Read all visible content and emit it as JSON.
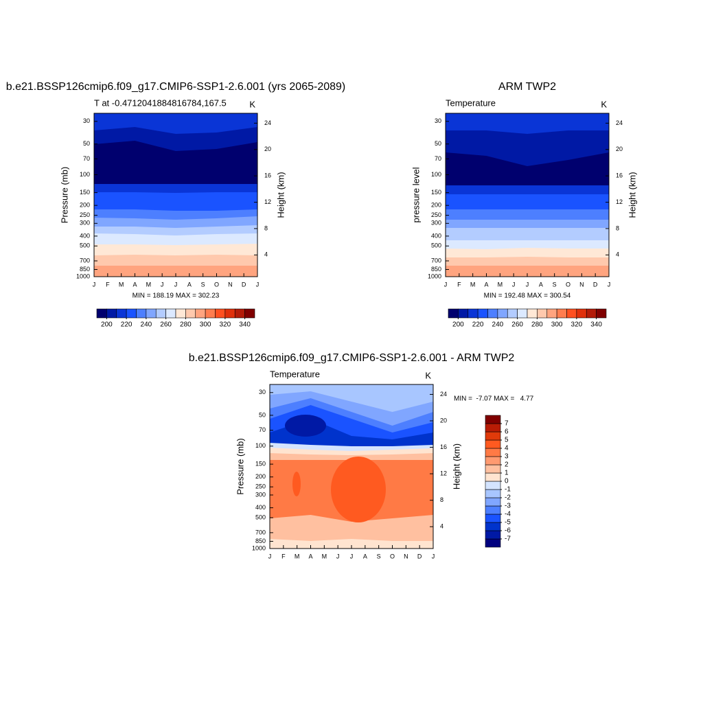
{
  "chart_data": [
    {
      "type": "contour",
      "title": "b.e21.BSSP126cmip6.f09_g17.CMIP6-SSP1-2.6.001 (yrs 2065-2089)",
      "subtitle": "T at -0.4712041884816784,167.5",
      "units": "K",
      "categories": [
        "J",
        "F",
        "M",
        "A",
        "M",
        "J",
        "J",
        "A",
        "S",
        "O",
        "N",
        "D",
        "J"
      ],
      "ylabel": "Pressure (mb)",
      "y2label": "Height (km)",
      "log_y": true,
      "ylim": [
        1000,
        25
      ],
      "yticks": [
        30,
        50,
        70,
        100,
        150,
        200,
        250,
        300,
        400,
        500,
        700,
        850,
        1000
      ],
      "y2lim": [
        0.7,
        25.5
      ],
      "y2ticks": [
        4,
        8,
        12,
        16,
        20,
        24
      ],
      "stats": "MIN = 188.19 MAX = 302.23",
      "colorbar": {
        "orientation": "horizontal",
        "clim": [
          190,
          350
        ],
        "ticks": [
          200,
          220,
          240,
          260,
          280,
          300,
          320,
          340
        ],
        "colors": [
          "#00006e",
          "#0019a5",
          "#0a35d6",
          "#1a53ff",
          "#4d7fff",
          "#80a6ff",
          "#b3ccff",
          "#dce9ff",
          "#ffe8d6",
          "#ffc9ad",
          "#ffa47f",
          "#ff7d4f",
          "#ff5020",
          "#e0300b",
          "#b31b08",
          "#800000"
        ]
      }
    },
    {
      "type": "contour",
      "title": "ARM TWP2",
      "subtitle": "Temperature",
      "units": "K",
      "categories": [
        "J",
        "F",
        "M",
        "A",
        "M",
        "J",
        "J",
        "A",
        "S",
        "O",
        "N",
        "D",
        "J"
      ],
      "ylabel": "pressure level",
      "y2label": "Height (km)",
      "log_y": true,
      "ylim": [
        1000,
        25
      ],
      "yticks": [
        30,
        50,
        70,
        100,
        150,
        200,
        250,
        300,
        400,
        500,
        700,
        850,
        1000
      ],
      "y2lim": [
        0.7,
        25.5
      ],
      "y2ticks": [
        4,
        8,
        12,
        16,
        20,
        24
      ],
      "stats": "MIN = 192.48 MAX = 300.54",
      "colorbar": {
        "orientation": "horizontal",
        "clim": [
          190,
          350
        ],
        "ticks": [
          200,
          220,
          240,
          260,
          280,
          300,
          320,
          340
        ],
        "colors": [
          "#00006e",
          "#0019a5",
          "#0a35d6",
          "#1a53ff",
          "#4d7fff",
          "#80a6ff",
          "#b3ccff",
          "#dce9ff",
          "#ffe8d6",
          "#ffc9ad",
          "#ffa47f",
          "#ff7d4f",
          "#ff5020",
          "#e0300b",
          "#b31b08",
          "#800000"
        ]
      }
    },
    {
      "type": "contour",
      "title": "b.e21.BSSP126cmip6.f09_g17.CMIP6-SSP1-2.6.001 - ARM TWP2",
      "subtitle": "Temperature",
      "units": "K",
      "categories": [
        "J",
        "F",
        "M",
        "A",
        "M",
        "J",
        "J",
        "A",
        "S",
        "O",
        "N",
        "D",
        "J"
      ],
      "ylabel": "Pressure (mb)",
      "y2label": "Height (km)",
      "log_y": true,
      "ylim": [
        1000,
        25
      ],
      "yticks": [
        30,
        50,
        70,
        100,
        150,
        200,
        250,
        300,
        400,
        500,
        700,
        850,
        1000
      ],
      "y2lim": [
        0.7,
        25.5
      ],
      "y2ticks": [
        4,
        8,
        12,
        16,
        20,
        24
      ],
      "stats": "MIN =  -7.07 MAX =   4.77",
      "colorbar": {
        "orientation": "vertical",
        "clim": [
          -8,
          8
        ],
        "ticks": [
          -7,
          -6,
          -5,
          -4,
          -3,
          -2,
          -1,
          0,
          1,
          2,
          3,
          4,
          5,
          6,
          7
        ],
        "colors": [
          "#00007f",
          "#0019a5",
          "#0033cc",
          "#1a53ff",
          "#4d7fff",
          "#80a6ff",
          "#a8c6ff",
          "#d4e4ff",
          "#ffe4d0",
          "#ffc0a0",
          "#ff9a70",
          "#ff7a45",
          "#ff5a20",
          "#e03a0a",
          "#b81c05",
          "#800000"
        ]
      }
    }
  ]
}
